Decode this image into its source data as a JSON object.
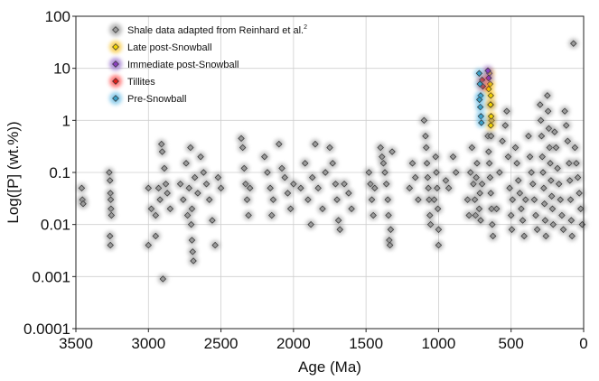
{
  "chart_data": {
    "type": "scatter",
    "xlabel": "Age (Ma)",
    "ylabel": "Log([P] (wt.%))",
    "x_reversed": true,
    "xlim": [
      3500,
      0
    ],
    "ylim": [
      0.0001,
      100
    ],
    "y_scale": "log",
    "grid": true,
    "legend_position": "top-left",
    "xticks": [
      3500,
      3000,
      2500,
      2000,
      1500,
      1000,
      500,
      0
    ],
    "xtick_labels": [
      "3500",
      "3000",
      "2500",
      "2000",
      "1500",
      "1000",
      "500",
      "0"
    ],
    "yticks": [
      0.0001,
      0.001,
      0.01,
      0.1,
      1,
      10,
      100
    ],
    "ytick_labels": [
      "0.0001",
      "0.001",
      "0.01",
      "0.1",
      "1",
      "10",
      "100"
    ],
    "series": [
      {
        "name": "Shale data adapted from Reinhard et al.",
        "superscript": "2",
        "marker_color": "#9a9a9a",
        "glow_color": "#8a8a8a",
        "points": [
          [
            3460,
            0.05
          ],
          [
            3455,
            0.03
          ],
          [
            3450,
            0.025
          ],
          [
            3270,
            0.1
          ],
          [
            3265,
            0.07
          ],
          [
            3262,
            0.04
          ],
          [
            3260,
            0.03
          ],
          [
            3258,
            0.02
          ],
          [
            3255,
            0.015
          ],
          [
            3265,
            0.006
          ],
          [
            3262,
            0.004
          ],
          [
            3000,
            0.05
          ],
          [
            2980,
            0.02
          ],
          [
            2950,
            0.015
          ],
          [
            2930,
            0.05
          ],
          [
            2920,
            0.03
          ],
          [
            2910,
            0.35
          ],
          [
            2905,
            0.25
          ],
          [
            2890,
            0.12
          ],
          [
            2880,
            0.06
          ],
          [
            2870,
            0.04
          ],
          [
            2850,
            0.02
          ],
          [
            2900,
            0.0009
          ],
          [
            2950,
            0.006
          ],
          [
            3000,
            0.004
          ],
          [
            2780,
            0.06
          ],
          [
            2760,
            0.03
          ],
          [
            2740,
            0.15
          ],
          [
            2730,
            0.015
          ],
          [
            2720,
            0.05
          ],
          [
            2710,
            0.3
          ],
          [
            2705,
            0.01
          ],
          [
            2700,
            0.005
          ],
          [
            2695,
            0.003
          ],
          [
            2690,
            0.002
          ],
          [
            2700,
            0.02
          ],
          [
            2680,
            0.08
          ],
          [
            2660,
            0.04
          ],
          [
            2640,
            0.2
          ],
          [
            2620,
            0.1
          ],
          [
            2600,
            0.06
          ],
          [
            2580,
            0.03
          ],
          [
            2560,
            0.012
          ],
          [
            2540,
            0.004
          ],
          [
            2520,
            0.08
          ],
          [
            2500,
            0.05
          ],
          [
            2360,
            0.45
          ],
          [
            2350,
            0.3
          ],
          [
            2340,
            0.12
          ],
          [
            2330,
            0.06
          ],
          [
            2320,
            0.03
          ],
          [
            2310,
            0.015
          ],
          [
            2300,
            0.05
          ],
          [
            2200,
            0.2
          ],
          [
            2180,
            0.1
          ],
          [
            2160,
            0.05
          ],
          [
            2140,
            0.03
          ],
          [
            2150,
            0.015
          ],
          [
            2100,
            0.35
          ],
          [
            2080,
            0.12
          ],
          [
            2060,
            0.08
          ],
          [
            2040,
            0.04
          ],
          [
            2020,
            0.02
          ],
          [
            2000,
            0.06
          ],
          [
            1950,
            0.05
          ],
          [
            1920,
            0.15
          ],
          [
            1900,
            0.03
          ],
          [
            1880,
            0.01
          ],
          [
            1870,
            0.08
          ],
          [
            1850,
            0.35
          ],
          [
            1830,
            0.05
          ],
          [
            1800,
            0.02
          ],
          [
            1780,
            0.1
          ],
          [
            1750,
            0.3
          ],
          [
            1730,
            0.15
          ],
          [
            1710,
            0.06
          ],
          [
            1700,
            0.03
          ],
          [
            1690,
            0.012
          ],
          [
            1680,
            0.008
          ],
          [
            1650,
            0.06
          ],
          [
            1620,
            0.04
          ],
          [
            1600,
            0.02
          ],
          [
            1480,
            0.1
          ],
          [
            1470,
            0.06
          ],
          [
            1460,
            0.03
          ],
          [
            1450,
            0.015
          ],
          [
            1440,
            0.05
          ],
          [
            1400,
            0.3
          ],
          [
            1390,
            0.2
          ],
          [
            1380,
            0.15
          ],
          [
            1370,
            0.1
          ],
          [
            1360,
            0.06
          ],
          [
            1350,
            0.03
          ],
          [
            1345,
            0.015
          ],
          [
            1340,
            0.005
          ],
          [
            1335,
            0.004
          ],
          [
            1330,
            0.008
          ],
          [
            1320,
            0.25
          ],
          [
            1200,
            0.05
          ],
          [
            1180,
            0.15
          ],
          [
            1160,
            0.08
          ],
          [
            1140,
            0.03
          ],
          [
            1100,
            1.0
          ],
          [
            1090,
            0.5
          ],
          [
            1085,
            0.3
          ],
          [
            1080,
            0.15
          ],
          [
            1075,
            0.08
          ],
          [
            1070,
            0.05
          ],
          [
            1065,
            0.03
          ],
          [
            1060,
            0.015
          ],
          [
            1055,
            0.01
          ],
          [
            1020,
            0.2
          ],
          [
            1015,
            0.1
          ],
          [
            1010,
            0.05
          ],
          [
            1005,
            0.02
          ],
          [
            1000,
            0.008
          ],
          [
            1000,
            0.004
          ],
          [
            1030,
            0.03
          ],
          [
            950,
            0.07
          ],
          [
            930,
            0.05
          ],
          [
            900,
            0.2
          ],
          [
            880,
            0.1
          ],
          [
            800,
            0.03
          ],
          [
            790,
            0.015
          ],
          [
            780,
            0.1
          ],
          [
            770,
            0.3
          ],
          [
            760,
            0.06
          ],
          [
            750,
            0.03
          ],
          [
            745,
            0.015
          ],
          [
            740,
            0.08
          ],
          [
            735,
            0.15
          ],
          [
            720,
            0.02
          ],
          [
            715,
            0.04
          ],
          [
            710,
            0.012
          ],
          [
            700,
            0.06
          ],
          [
            660,
            0.5
          ],
          [
            655,
            0.25
          ],
          [
            650,
            0.15
          ],
          [
            645,
            0.08
          ],
          [
            640,
            0.04
          ],
          [
            635,
            0.02
          ],
          [
            630,
            0.01
          ],
          [
            625,
            0.006
          ],
          [
            635,
            1.0
          ],
          [
            640,
            2.0
          ],
          [
            638,
            0.5
          ],
          [
            600,
            0.02
          ],
          [
            580,
            0.1
          ],
          [
            560,
            0.4
          ],
          [
            540,
            0.8
          ],
          [
            530,
            1.5
          ],
          [
            520,
            0.2
          ],
          [
            510,
            0.05
          ],
          [
            500,
            0.015
          ],
          [
            495,
            0.008
          ],
          [
            490,
            0.03
          ],
          [
            470,
            0.3
          ],
          [
            460,
            0.15
          ],
          [
            450,
            0.07
          ],
          [
            440,
            0.04
          ],
          [
            430,
            0.02
          ],
          [
            420,
            0.012
          ],
          [
            410,
            0.006
          ],
          [
            400,
            0.03
          ],
          [
            380,
            0.5
          ],
          [
            370,
            0.2
          ],
          [
            360,
            0.1
          ],
          [
            350,
            0.06
          ],
          [
            340,
            0.03
          ],
          [
            330,
            0.015
          ],
          [
            320,
            0.008
          ],
          [
            300,
            2.0
          ],
          [
            295,
            1.0
          ],
          [
            290,
            0.5
          ],
          [
            285,
            0.2
          ],
          [
            280,
            0.1
          ],
          [
            275,
            0.05
          ],
          [
            270,
            0.025
          ],
          [
            265,
            0.012
          ],
          [
            260,
            0.006
          ],
          [
            250,
            3.0
          ],
          [
            245,
            1.5
          ],
          [
            240,
            0.7
          ],
          [
            235,
            0.3
          ],
          [
            230,
            0.15
          ],
          [
            225,
            0.07
          ],
          [
            220,
            0.035
          ],
          [
            215,
            0.02
          ],
          [
            210,
            0.01
          ],
          [
            200,
            0.6
          ],
          [
            190,
            0.3
          ],
          [
            180,
            0.12
          ],
          [
            170,
            0.06
          ],
          [
            160,
            0.03
          ],
          [
            150,
            0.015
          ],
          [
            140,
            0.008
          ],
          [
            130,
            1.5
          ],
          [
            120,
            0.8
          ],
          [
            110,
            0.4
          ],
          [
            100,
            0.15
          ],
          [
            95,
            0.07
          ],
          [
            90,
            0.03
          ],
          [
            85,
            0.012
          ],
          [
            80,
            0.006
          ],
          [
            70,
            30
          ],
          [
            60,
            0.3
          ],
          [
            50,
            0.15
          ],
          [
            40,
            0.08
          ],
          [
            30,
            0.04
          ],
          [
            20,
            0.02
          ],
          [
            10,
            0.01
          ]
        ]
      },
      {
        "name": "Late post-Snowball",
        "marker_color": "#f2d200",
        "glow_color": "#f5b800",
        "points": [
          [
            650,
            8.0
          ],
          [
            645,
            5.0
          ],
          [
            640,
            3.0
          ],
          [
            642,
            2.0
          ],
          [
            638,
            1.2
          ],
          [
            640,
            0.8
          ],
          [
            655,
            4.0
          ]
        ]
      },
      {
        "name": "Immediate post-Snowball",
        "marker_color": "#8a3fbf",
        "glow_color": "#8050c0",
        "points": [
          [
            660,
            9.0
          ],
          [
            655,
            6.5
          ]
        ]
      },
      {
        "name": "Tillites",
        "marker_color": "#e0201a",
        "glow_color": "#ff2a2a",
        "points": [
          [
            700,
            6.0
          ],
          [
            695,
            4.5
          ]
        ]
      },
      {
        "name": "Pre-Snowball",
        "marker_color": "#3aa0c8",
        "glow_color": "#4db0e0",
        "points": [
          [
            720,
            8.0
          ],
          [
            715,
            5.0
          ],
          [
            710,
            3.0
          ],
          [
            712,
            1.8
          ],
          [
            708,
            1.2
          ],
          [
            705,
            0.9
          ],
          [
            718,
            2.5
          ]
        ]
      }
    ]
  }
}
